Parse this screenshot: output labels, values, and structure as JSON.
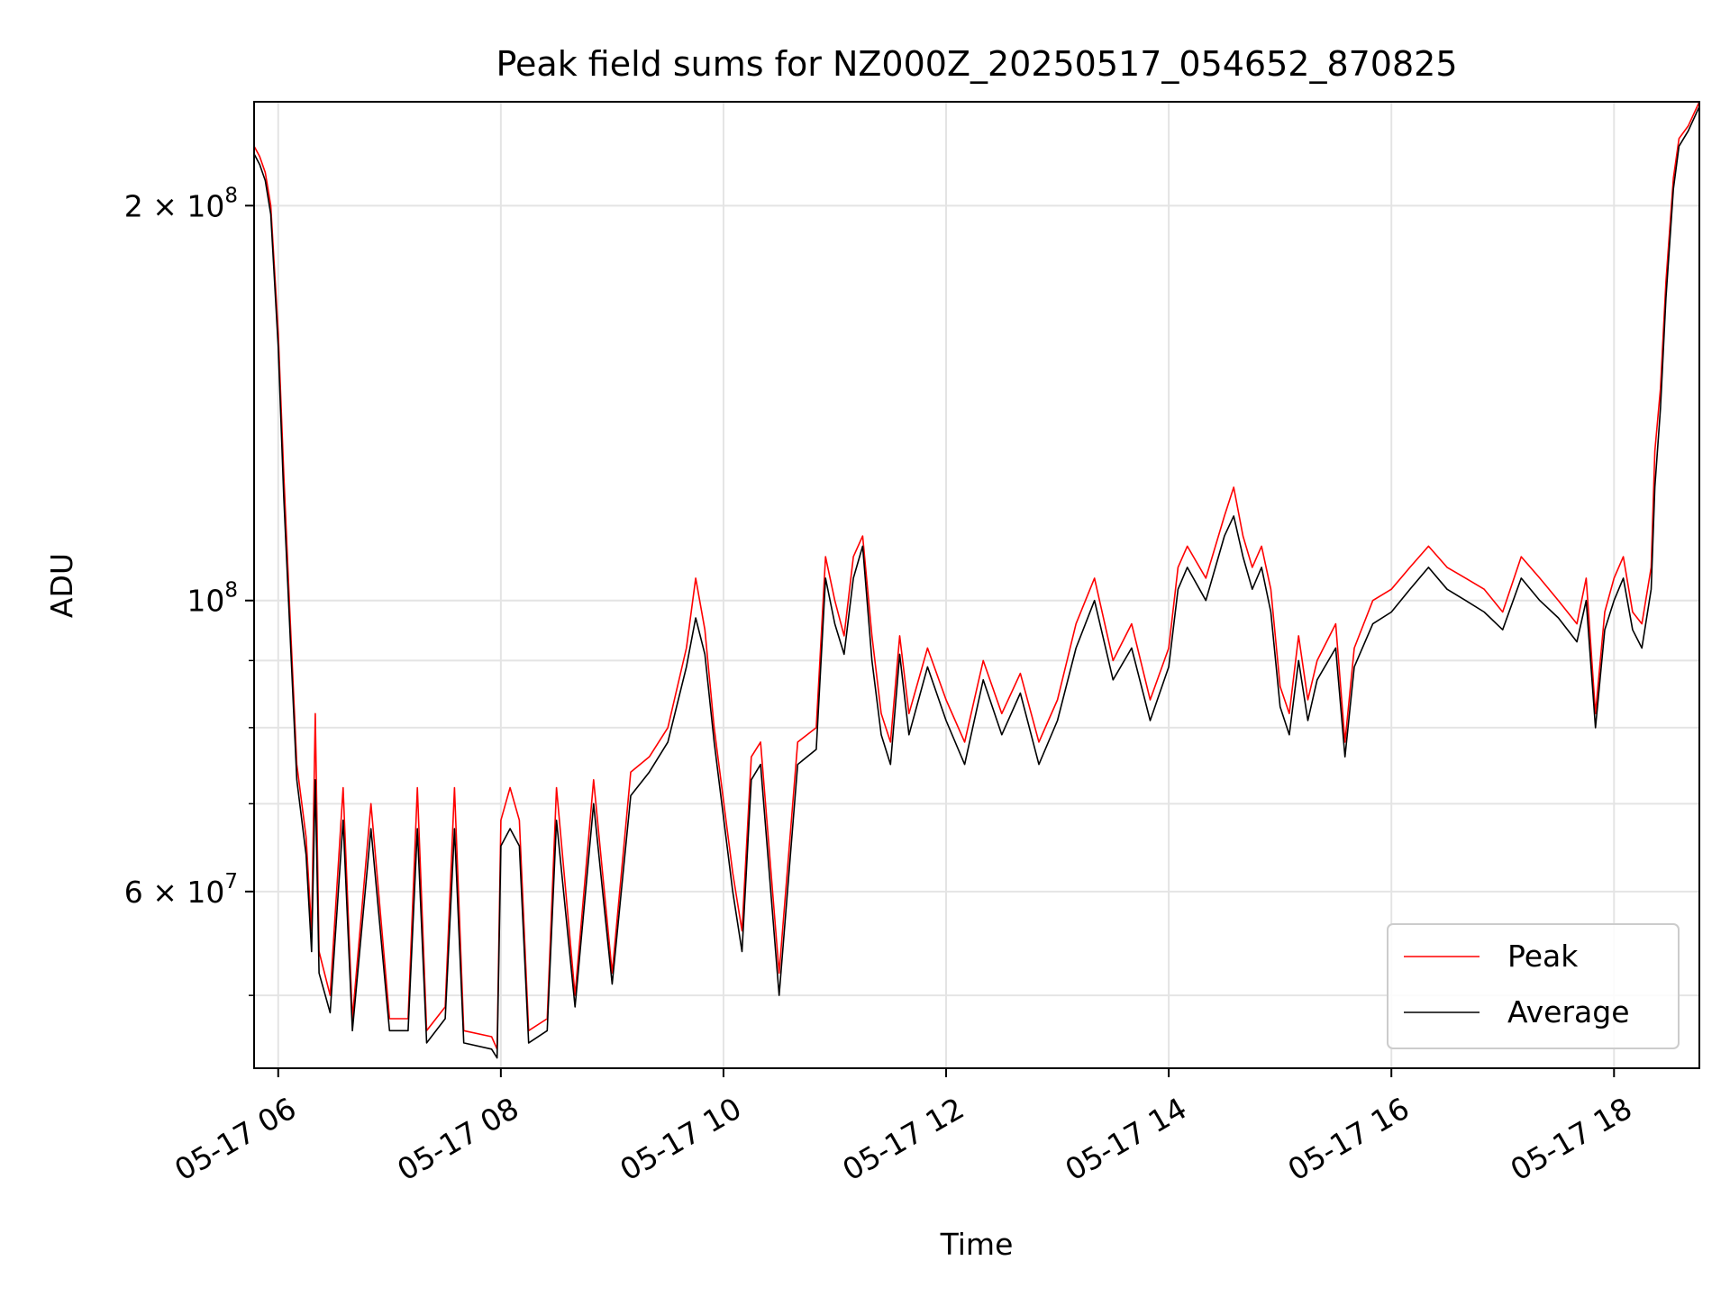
{
  "chart_data": {
    "type": "line",
    "title": "Peak field sums for NZ000Z_20250517_054652_870825",
    "xlabel": "Time",
    "ylabel": "ADU",
    "y_scale": "log",
    "x_range": [
      "2025-05-17 05:47",
      "2025-05-17 18:46"
    ],
    "ylim": [
      44000000,
      240000000
    ],
    "grid": true,
    "legend_position": "bottom-right",
    "x_ticks": [
      {
        "t": "2025-05-17 06:00",
        "label": "05-17 06"
      },
      {
        "t": "2025-05-17 08:00",
        "label": "05-17 08"
      },
      {
        "t": "2025-05-17 10:00",
        "label": "05-17 10"
      },
      {
        "t": "2025-05-17 12:00",
        "label": "05-17 12"
      },
      {
        "t": "2025-05-17 14:00",
        "label": "05-17 14"
      },
      {
        "t": "2025-05-17 16:00",
        "label": "05-17 16"
      },
      {
        "t": "2025-05-17 18:00",
        "label": "05-17 18"
      }
    ],
    "y_ticks_major": [
      {
        "value": 60000000,
        "base": "6 × 10",
        "exp": "7"
      },
      {
        "value": 100000000,
        "base": "10",
        "exp": "8"
      },
      {
        "value": 200000000,
        "base": "2 × 10",
        "exp": "8"
      }
    ],
    "y_ticks_minor": [
      50000000,
      70000000,
      80000000,
      90000000
    ],
    "colors": {
      "peak": "#ff0000",
      "average": "#000000"
    },
    "series": [
      {
        "name": "Peak",
        "color": "#ff0000",
        "points": [
          [
            "2025-05-17 05:47",
            222000000
          ],
          [
            "2025-05-17 05:50",
            218000000
          ],
          [
            "2025-05-17 05:53",
            212000000
          ],
          [
            "2025-05-17 05:56",
            200000000
          ],
          [
            "2025-05-17 06:00",
            160000000
          ],
          [
            "2025-05-17 06:03",
            125000000
          ],
          [
            "2025-05-17 06:06",
            100000000
          ],
          [
            "2025-05-17 06:10",
            75000000
          ],
          [
            "2025-05-17 06:15",
            66000000
          ],
          [
            "2025-05-17 06:18",
            56000000
          ],
          [
            "2025-05-17 06:20",
            82000000
          ],
          [
            "2025-05-17 06:22",
            54000000
          ],
          [
            "2025-05-17 06:28",
            50000000
          ],
          [
            "2025-05-17 06:35",
            72000000
          ],
          [
            "2025-05-17 06:40",
            48000000
          ],
          [
            "2025-05-17 06:50",
            70000000
          ],
          [
            "2025-05-17 07:00",
            48000000
          ],
          [
            "2025-05-17 07:10",
            48000000
          ],
          [
            "2025-05-17 07:15",
            72000000
          ],
          [
            "2025-05-17 07:20",
            47000000
          ],
          [
            "2025-05-17 07:30",
            49000000
          ],
          [
            "2025-05-17 07:35",
            72000000
          ],
          [
            "2025-05-17 07:40",
            47000000
          ],
          [
            "2025-05-17 07:55",
            46500000
          ],
          [
            "2025-05-17 07:58",
            45500000
          ],
          [
            "2025-05-17 08:00",
            68000000
          ],
          [
            "2025-05-17 08:05",
            72000000
          ],
          [
            "2025-05-17 08:10",
            68000000
          ],
          [
            "2025-05-17 08:15",
            47000000
          ],
          [
            "2025-05-17 08:25",
            48000000
          ],
          [
            "2025-05-17 08:30",
            72000000
          ],
          [
            "2025-05-17 08:40",
            50000000
          ],
          [
            "2025-05-17 08:50",
            73000000
          ],
          [
            "2025-05-17 09:00",
            52000000
          ],
          [
            "2025-05-17 09:10",
            74000000
          ],
          [
            "2025-05-17 09:20",
            76000000
          ],
          [
            "2025-05-17 09:30",
            80000000
          ],
          [
            "2025-05-17 09:40",
            92000000
          ],
          [
            "2025-05-17 09:45",
            104000000
          ],
          [
            "2025-05-17 09:50",
            95000000
          ],
          [
            "2025-05-17 09:55",
            80000000
          ],
          [
            "2025-05-17 10:05",
            62000000
          ],
          [
            "2025-05-17 10:10",
            56000000
          ],
          [
            "2025-05-17 10:15",
            76000000
          ],
          [
            "2025-05-17 10:20",
            78000000
          ],
          [
            "2025-05-17 10:30",
            52000000
          ],
          [
            "2025-05-17 10:40",
            78000000
          ],
          [
            "2025-05-17 10:50",
            80000000
          ],
          [
            "2025-05-17 10:55",
            108000000
          ],
          [
            "2025-05-17 11:00",
            100000000
          ],
          [
            "2025-05-17 11:05",
            94000000
          ],
          [
            "2025-05-17 11:10",
            108000000
          ],
          [
            "2025-05-17 11:15",
            112000000
          ],
          [
            "2025-05-17 11:20",
            94000000
          ],
          [
            "2025-05-17 11:25",
            82000000
          ],
          [
            "2025-05-17 11:30",
            78000000
          ],
          [
            "2025-05-17 11:35",
            94000000
          ],
          [
            "2025-05-17 11:40",
            82000000
          ],
          [
            "2025-05-17 11:50",
            92000000
          ],
          [
            "2025-05-17 12:00",
            84000000
          ],
          [
            "2025-05-17 12:10",
            78000000
          ],
          [
            "2025-05-17 12:20",
            90000000
          ],
          [
            "2025-05-17 12:30",
            82000000
          ],
          [
            "2025-05-17 12:40",
            88000000
          ],
          [
            "2025-05-17 12:50",
            78000000
          ],
          [
            "2025-05-17 13:00",
            84000000
          ],
          [
            "2025-05-17 13:10",
            96000000
          ],
          [
            "2025-05-17 13:20",
            104000000
          ],
          [
            "2025-05-17 13:30",
            90000000
          ],
          [
            "2025-05-17 13:40",
            96000000
          ],
          [
            "2025-05-17 13:50",
            84000000
          ],
          [
            "2025-05-17 14:00",
            92000000
          ],
          [
            "2025-05-17 14:05",
            106000000
          ],
          [
            "2025-05-17 14:10",
            110000000
          ],
          [
            "2025-05-17 14:20",
            104000000
          ],
          [
            "2025-05-17 14:30",
            116000000
          ],
          [
            "2025-05-17 14:35",
            122000000
          ],
          [
            "2025-05-17 14:40",
            112000000
          ],
          [
            "2025-05-17 14:45",
            106000000
          ],
          [
            "2025-05-17 14:50",
            110000000
          ],
          [
            "2025-05-17 14:55",
            102000000
          ],
          [
            "2025-05-17 15:00",
            86000000
          ],
          [
            "2025-05-17 15:05",
            82000000
          ],
          [
            "2025-05-17 15:10",
            94000000
          ],
          [
            "2025-05-17 15:15",
            84000000
          ],
          [
            "2025-05-17 15:20",
            90000000
          ],
          [
            "2025-05-17 15:30",
            96000000
          ],
          [
            "2025-05-17 15:35",
            78000000
          ],
          [
            "2025-05-17 15:40",
            92000000
          ],
          [
            "2025-05-17 15:50",
            100000000
          ],
          [
            "2025-05-17 16:00",
            102000000
          ],
          [
            "2025-05-17 16:10",
            106000000
          ],
          [
            "2025-05-17 16:20",
            110000000
          ],
          [
            "2025-05-17 16:30",
            106000000
          ],
          [
            "2025-05-17 16:40",
            104000000
          ],
          [
            "2025-05-17 16:50",
            102000000
          ],
          [
            "2025-05-17 17:00",
            98000000
          ],
          [
            "2025-05-17 17:10",
            108000000
          ],
          [
            "2025-05-17 17:20",
            104000000
          ],
          [
            "2025-05-17 17:30",
            100000000
          ],
          [
            "2025-05-17 17:40",
            96000000
          ],
          [
            "2025-05-17 17:45",
            104000000
          ],
          [
            "2025-05-17 17:50",
            82000000
          ],
          [
            "2025-05-17 17:55",
            98000000
          ],
          [
            "2025-05-17 18:00",
            104000000
          ],
          [
            "2025-05-17 18:05",
            108000000
          ],
          [
            "2025-05-17 18:10",
            98000000
          ],
          [
            "2025-05-17 18:15",
            96000000
          ],
          [
            "2025-05-17 18:20",
            106000000
          ],
          [
            "2025-05-17 18:22",
            130000000
          ],
          [
            "2025-05-17 18:25",
            145000000
          ],
          [
            "2025-05-17 18:28",
            175000000
          ],
          [
            "2025-05-17 18:32",
            210000000
          ],
          [
            "2025-05-17 18:35",
            225000000
          ],
          [
            "2025-05-17 18:40",
            230000000
          ],
          [
            "2025-05-17 18:46",
            240000000
          ]
        ]
      },
      {
        "name": "Average",
        "color": "#000000",
        "points": [
          [
            "2025-05-17 05:47",
            219000000
          ],
          [
            "2025-05-17 05:50",
            215000000
          ],
          [
            "2025-05-17 05:53",
            209000000
          ],
          [
            "2025-05-17 05:56",
            197000000
          ],
          [
            "2025-05-17 06:00",
            156000000
          ],
          [
            "2025-05-17 06:03",
            120000000
          ],
          [
            "2025-05-17 06:06",
            97000000
          ],
          [
            "2025-05-17 06:10",
            73000000
          ],
          [
            "2025-05-17 06:15",
            64000000
          ],
          [
            "2025-05-17 06:18",
            54000000
          ],
          [
            "2025-05-17 06:20",
            73000000
          ],
          [
            "2025-05-17 06:22",
            52000000
          ],
          [
            "2025-05-17 06:28",
            48500000
          ],
          [
            "2025-05-17 06:35",
            68000000
          ],
          [
            "2025-05-17 06:40",
            47000000
          ],
          [
            "2025-05-17 06:50",
            67000000
          ],
          [
            "2025-05-17 07:00",
            47000000
          ],
          [
            "2025-05-17 07:10",
            47000000
          ],
          [
            "2025-05-17 07:15",
            67000000
          ],
          [
            "2025-05-17 07:20",
            46000000
          ],
          [
            "2025-05-17 07:30",
            48000000
          ],
          [
            "2025-05-17 07:35",
            67000000
          ],
          [
            "2025-05-17 07:40",
            46000000
          ],
          [
            "2025-05-17 07:55",
            45500000
          ],
          [
            "2025-05-17 07:58",
            44800000
          ],
          [
            "2025-05-17 08:00",
            65000000
          ],
          [
            "2025-05-17 08:05",
            67000000
          ],
          [
            "2025-05-17 08:10",
            65000000
          ],
          [
            "2025-05-17 08:15",
            46000000
          ],
          [
            "2025-05-17 08:25",
            47000000
          ],
          [
            "2025-05-17 08:30",
            68000000
          ],
          [
            "2025-05-17 08:40",
            49000000
          ],
          [
            "2025-05-17 08:50",
            70000000
          ],
          [
            "2025-05-17 09:00",
            51000000
          ],
          [
            "2025-05-17 09:10",
            71000000
          ],
          [
            "2025-05-17 09:20",
            74000000
          ],
          [
            "2025-05-17 09:30",
            78000000
          ],
          [
            "2025-05-17 09:40",
            89000000
          ],
          [
            "2025-05-17 09:45",
            97000000
          ],
          [
            "2025-05-17 09:50",
            91000000
          ],
          [
            "2025-05-17 09:55",
            78000000
          ],
          [
            "2025-05-17 10:05",
            60000000
          ],
          [
            "2025-05-17 10:10",
            54000000
          ],
          [
            "2025-05-17 10:15",
            73000000
          ],
          [
            "2025-05-17 10:20",
            75000000
          ],
          [
            "2025-05-17 10:30",
            50000000
          ],
          [
            "2025-05-17 10:40",
            75000000
          ],
          [
            "2025-05-17 10:50",
            77000000
          ],
          [
            "2025-05-17 10:55",
            104000000
          ],
          [
            "2025-05-17 11:00",
            96000000
          ],
          [
            "2025-05-17 11:05",
            91000000
          ],
          [
            "2025-05-17 11:10",
            104000000
          ],
          [
            "2025-05-17 11:15",
            110000000
          ],
          [
            "2025-05-17 11:20",
            90000000
          ],
          [
            "2025-05-17 11:25",
            79000000
          ],
          [
            "2025-05-17 11:30",
            75000000
          ],
          [
            "2025-05-17 11:35",
            91000000
          ],
          [
            "2025-05-17 11:40",
            79000000
          ],
          [
            "2025-05-17 11:50",
            89000000
          ],
          [
            "2025-05-17 12:00",
            81000000
          ],
          [
            "2025-05-17 12:10",
            75000000
          ],
          [
            "2025-05-17 12:20",
            87000000
          ],
          [
            "2025-05-17 12:30",
            79000000
          ],
          [
            "2025-05-17 12:40",
            85000000
          ],
          [
            "2025-05-17 12:50",
            75000000
          ],
          [
            "2025-05-17 13:00",
            81000000
          ],
          [
            "2025-05-17 13:10",
            92000000
          ],
          [
            "2025-05-17 13:20",
            100000000
          ],
          [
            "2025-05-17 13:30",
            87000000
          ],
          [
            "2025-05-17 13:40",
            92000000
          ],
          [
            "2025-05-17 13:50",
            81000000
          ],
          [
            "2025-05-17 14:00",
            89000000
          ],
          [
            "2025-05-17 14:05",
            102000000
          ],
          [
            "2025-05-17 14:10",
            106000000
          ],
          [
            "2025-05-17 14:20",
            100000000
          ],
          [
            "2025-05-17 14:30",
            112000000
          ],
          [
            "2025-05-17 14:35",
            116000000
          ],
          [
            "2025-05-17 14:40",
            108000000
          ],
          [
            "2025-05-17 14:45",
            102000000
          ],
          [
            "2025-05-17 14:50",
            106000000
          ],
          [
            "2025-05-17 14:55",
            98000000
          ],
          [
            "2025-05-17 15:00",
            83000000
          ],
          [
            "2025-05-17 15:05",
            79000000
          ],
          [
            "2025-05-17 15:10",
            90000000
          ],
          [
            "2025-05-17 15:15",
            81000000
          ],
          [
            "2025-05-17 15:20",
            87000000
          ],
          [
            "2025-05-17 15:30",
            92000000
          ],
          [
            "2025-05-17 15:35",
            76000000
          ],
          [
            "2025-05-17 15:40",
            89000000
          ],
          [
            "2025-05-17 15:50",
            96000000
          ],
          [
            "2025-05-17 16:00",
            98000000
          ],
          [
            "2025-05-17 16:10",
            102000000
          ],
          [
            "2025-05-17 16:20",
            106000000
          ],
          [
            "2025-05-17 16:30",
            102000000
          ],
          [
            "2025-05-17 16:40",
            100000000
          ],
          [
            "2025-05-17 16:50",
            98000000
          ],
          [
            "2025-05-17 17:00",
            95000000
          ],
          [
            "2025-05-17 17:10",
            104000000
          ],
          [
            "2025-05-17 17:20",
            100000000
          ],
          [
            "2025-05-17 17:30",
            97000000
          ],
          [
            "2025-05-17 17:40",
            93000000
          ],
          [
            "2025-05-17 17:45",
            100000000
          ],
          [
            "2025-05-17 17:50",
            80000000
          ],
          [
            "2025-05-17 17:55",
            95000000
          ],
          [
            "2025-05-17 18:00",
            100000000
          ],
          [
            "2025-05-17 18:05",
            104000000
          ],
          [
            "2025-05-17 18:10",
            95000000
          ],
          [
            "2025-05-17 18:15",
            92000000
          ],
          [
            "2025-05-17 18:20",
            102000000
          ],
          [
            "2025-05-17 18:22",
            122000000
          ],
          [
            "2025-05-17 18:25",
            140000000
          ],
          [
            "2025-05-17 18:28",
            170000000
          ],
          [
            "2025-05-17 18:32",
            206000000
          ],
          [
            "2025-05-17 18:35",
            222000000
          ],
          [
            "2025-05-17 18:40",
            228000000
          ],
          [
            "2025-05-17 18:46",
            238000000
          ]
        ]
      }
    ]
  }
}
